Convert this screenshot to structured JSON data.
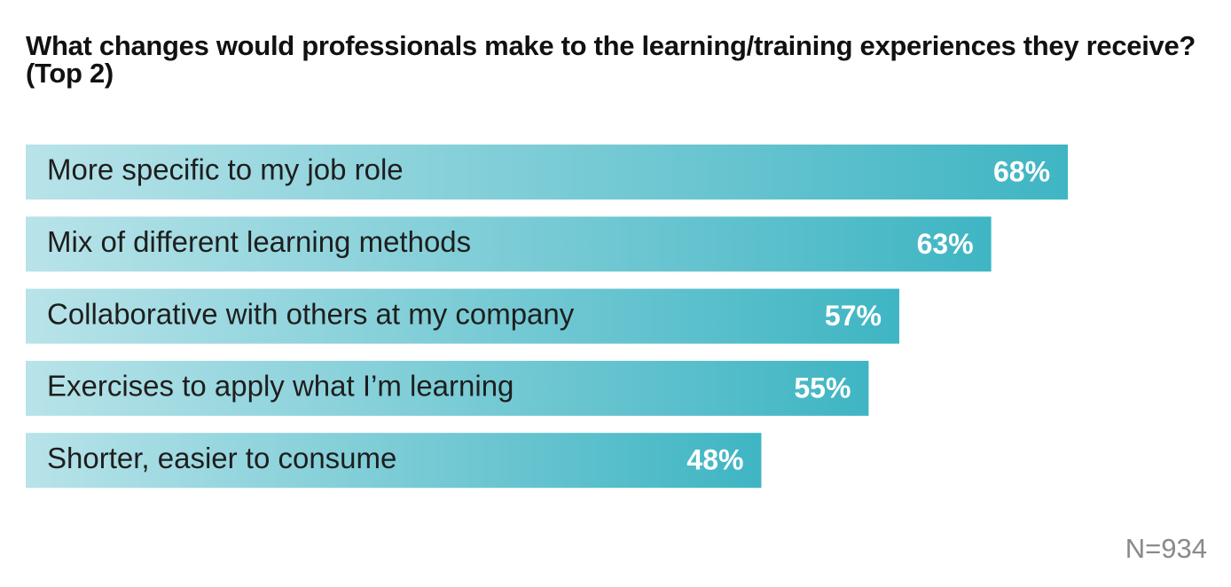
{
  "chart_data": {
    "type": "bar",
    "orientation": "horizontal",
    "title": "What changes would professionals make to the learning/training experiences they receive? (Top 2)",
    "categories": [
      "More specific to my job role",
      "Mix of different learning methods",
      "Collaborative with others at my company",
      "Exercises to apply what I’m learning",
      "Shorter, easier to consume"
    ],
    "values": [
      68,
      63,
      57,
      55,
      48
    ],
    "value_labels": [
      "68%",
      "63%",
      "57%",
      "55%",
      "48%"
    ],
    "color": "#3fb5c3",
    "annotation": "N=934"
  }
}
